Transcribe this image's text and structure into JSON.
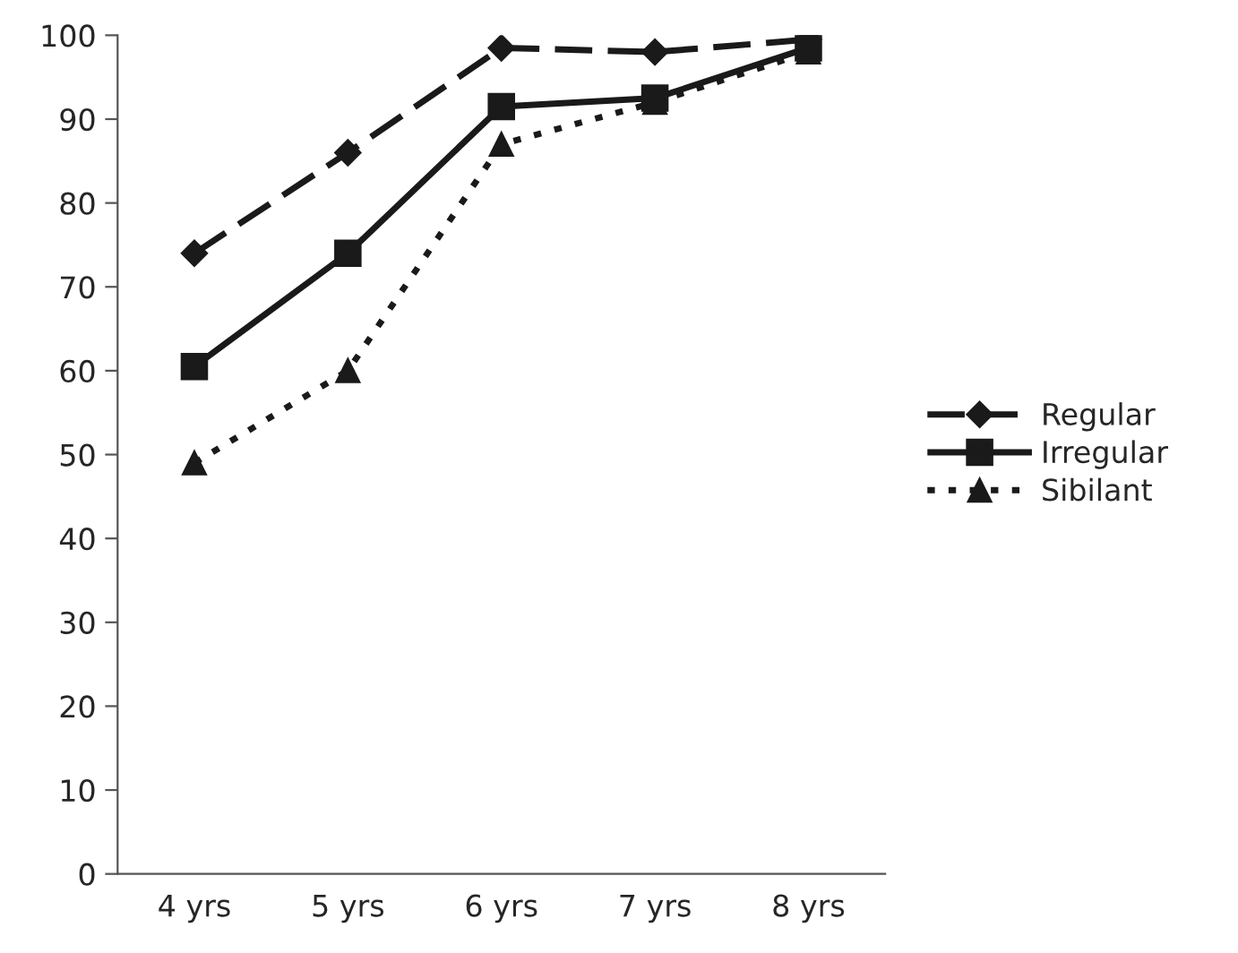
{
  "chart_data": {
    "type": "line",
    "categories": [
      "4 yrs",
      "5 yrs",
      "6 yrs",
      "7 yrs",
      "8 yrs"
    ],
    "series": [
      {
        "name": "Regular",
        "color": "#1a1a1a",
        "marker": "diamond",
        "line_style": "dashed",
        "values": [
          74,
          86,
          98.5,
          98,
          99.5
        ]
      },
      {
        "name": "Irregular",
        "color": "#1a1a1a",
        "marker": "square",
        "line_style": "solid",
        "values": [
          60.5,
          74,
          91.5,
          92.5,
          98.5
        ]
      },
      {
        "name": "Sibilant",
        "color": "#1a1a1a",
        "marker": "triangle",
        "line_style": "dotted",
        "values": [
          49,
          60,
          87,
          92,
          98
        ]
      }
    ],
    "ylim": [
      0,
      100
    ],
    "yticks": [
      0,
      10,
      20,
      30,
      40,
      50,
      60,
      70,
      80,
      90,
      100
    ],
    "grid": false,
    "legend": "right"
  }
}
